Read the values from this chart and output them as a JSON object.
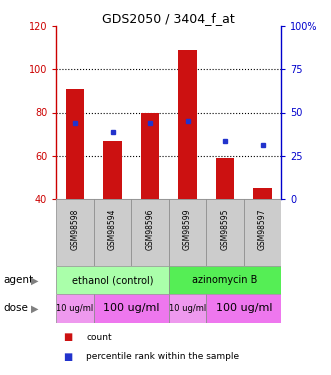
{
  "title": "GDS2050 / 3404_f_at",
  "samples": [
    "GSM98598",
    "GSM98594",
    "GSM98596",
    "GSM98599",
    "GSM98595",
    "GSM98597"
  ],
  "bar_bottom": 40,
  "red_values": [
    91,
    67,
    80,
    109,
    59,
    45
  ],
  "blue_values_left": [
    75,
    71,
    75,
    76,
    67,
    65
  ],
  "ylim_left": [
    40,
    120
  ],
  "ylim_right": [
    0,
    100
  ],
  "yticks_left": [
    40,
    60,
    80,
    100,
    120
  ],
  "yticks_right": [
    0,
    25,
    50,
    75,
    100
  ],
  "ytick_labels_left": [
    "40",
    "60",
    "80",
    "100",
    "120"
  ],
  "ytick_labels_right": [
    "0",
    "25",
    "50",
    "75",
    "100%"
  ],
  "left_color": "#cc0000",
  "right_color": "#0000cc",
  "blue_square_color": "#2233cc",
  "red_bar_color": "#cc1111",
  "agent_groups": [
    {
      "label": "ethanol (control)",
      "color": "#aaffaa",
      "start": 0,
      "end": 3
    },
    {
      "label": "azinomycin B",
      "color": "#55ee55",
      "start": 3,
      "end": 6
    }
  ],
  "dose_groups": [
    {
      "label": "10 ug/ml",
      "start": 0,
      "end": 1,
      "fontsize": 6,
      "color": "#ee99ee"
    },
    {
      "label": "100 ug/ml",
      "start": 1,
      "end": 3,
      "fontsize": 8,
      "color": "#ee77ee"
    },
    {
      "label": "10 ug/ml",
      "start": 3,
      "end": 4,
      "fontsize": 6,
      "color": "#ee99ee"
    },
    {
      "label": "100 ug/ml",
      "start": 4,
      "end": 6,
      "fontsize": 8,
      "color": "#ee77ee"
    }
  ],
  "legend_items": [
    {
      "color": "#cc1111",
      "label": "count"
    },
    {
      "color": "#2233cc",
      "label": "percentile rank within the sample"
    }
  ],
  "bar_width": 0.5,
  "sample_box_color": "#cccccc",
  "sample_box_edge": "#888888"
}
